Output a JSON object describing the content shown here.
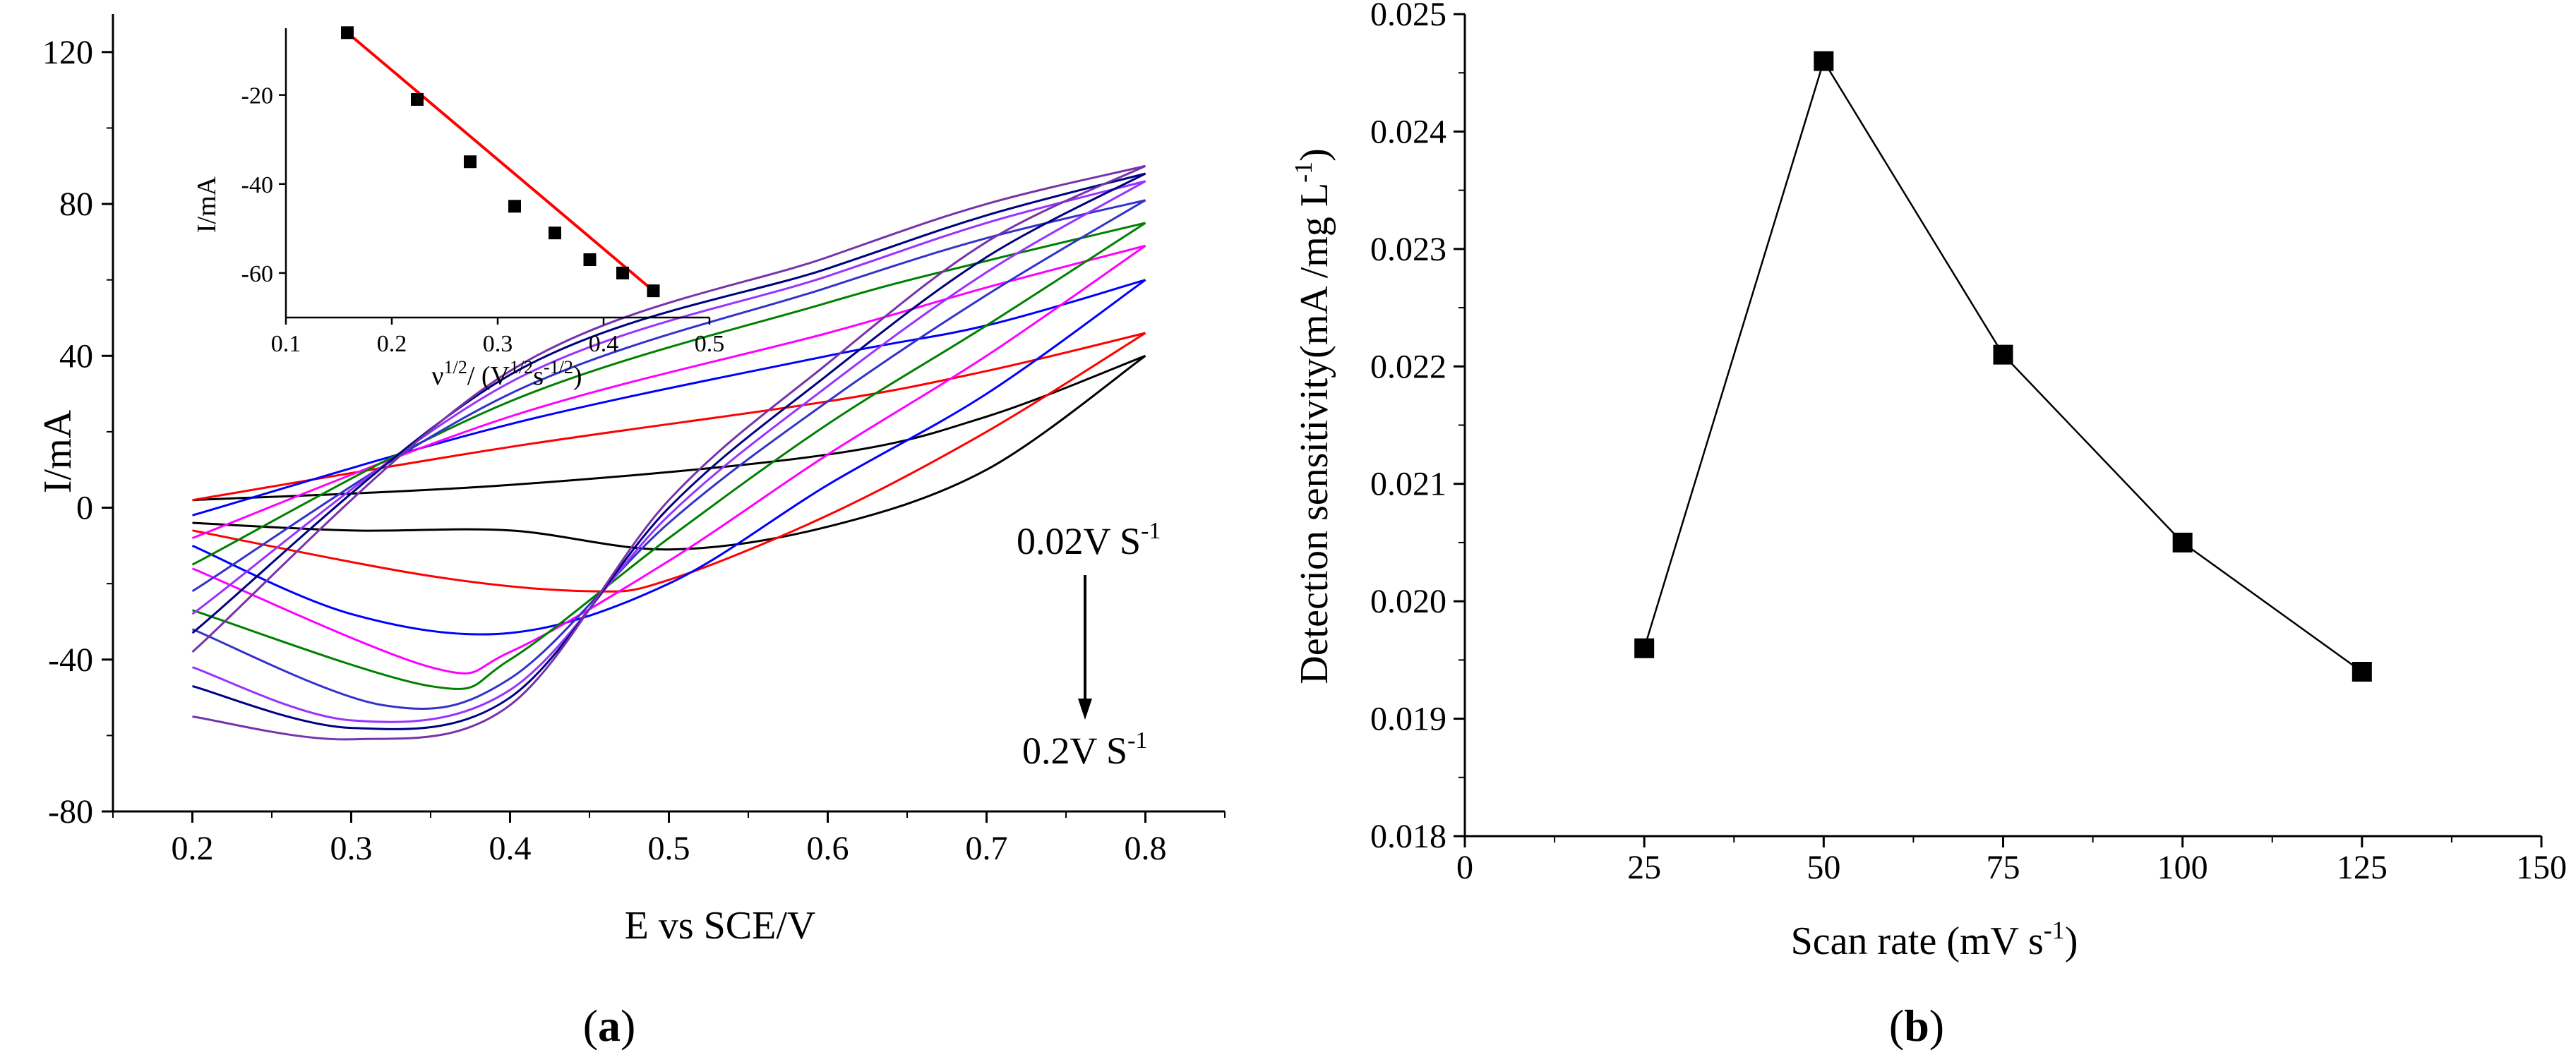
{
  "chart_data": [
    {
      "panel": "a",
      "type": "line",
      "xlabel": "E vs SCE/V",
      "ylabel": "I/mA",
      "xlim": [
        0.15,
        0.85
      ],
      "ylim": [
        -80,
        130
      ],
      "x_ticks": [
        "0.2",
        "0.3",
        "0.4",
        "0.5",
        "0.6",
        "0.7",
        "0.8"
      ],
      "y_ticks": [
        "-80",
        "-40",
        "0",
        "40",
        "80",
        "120"
      ],
      "annotations": {
        "start": {
          "text": "0.02V S",
          "sup": "-1"
        },
        "end": {
          "text": "0.2V S",
          "sup": "-1"
        }
      },
      "series": [
        {
          "color": "#000000",
          "x_range": [
            0.2,
            0.8
          ],
          "anodic": [
            [
              0.2,
              2
            ],
            [
              0.4,
              6
            ],
            [
              0.6,
              14
            ],
            [
              0.7,
              24
            ],
            [
              0.8,
              40
            ]
          ],
          "cathodic": [
            [
              0.8,
              40
            ],
            [
              0.7,
              10
            ],
            [
              0.6,
              -5
            ],
            [
              0.5,
              -11
            ],
            [
              0.4,
              -6
            ],
            [
              0.3,
              -6
            ],
            [
              0.2,
              -4
            ]
          ]
        },
        {
          "color": "#ff0000",
          "x_range": [
            0.2,
            0.8
          ],
          "anodic": [
            [
              0.2,
              2
            ],
            [
              0.4,
              16
            ],
            [
              0.6,
              28
            ],
            [
              0.7,
              36
            ],
            [
              0.8,
              46
            ]
          ],
          "cathodic": [
            [
              0.8,
              46
            ],
            [
              0.7,
              20
            ],
            [
              0.6,
              -2
            ],
            [
              0.5,
              -19
            ],
            [
              0.45,
              -22
            ],
            [
              0.35,
              -18
            ],
            [
              0.2,
              -6
            ]
          ]
        },
        {
          "color": "#0000ff",
          "x_range": [
            0.2,
            0.8
          ],
          "anodic": [
            [
              0.2,
              -2
            ],
            [
              0.4,
              22
            ],
            [
              0.6,
              40
            ],
            [
              0.7,
              48
            ],
            [
              0.8,
              60
            ]
          ],
          "cathodic": [
            [
              0.8,
              60
            ],
            [
              0.7,
              30
            ],
            [
              0.6,
              6
            ],
            [
              0.5,
              -20
            ],
            [
              0.4,
              -33
            ],
            [
              0.3,
              -28
            ],
            [
              0.2,
              -10
            ]
          ]
        },
        {
          "color": "#ff00ff",
          "x_range": [
            0.2,
            0.8
          ],
          "anodic": [
            [
              0.2,
              -8
            ],
            [
              0.4,
              24
            ],
            [
              0.6,
              46
            ],
            [
              0.7,
              58
            ],
            [
              0.8,
              69
            ]
          ],
          "cathodic": [
            [
              0.8,
              69
            ],
            [
              0.7,
              40
            ],
            [
              0.6,
              14
            ],
            [
              0.5,
              -14
            ],
            [
              0.4,
              -38
            ],
            [
              0.35,
              -42
            ],
            [
              0.2,
              -16
            ]
          ]
        },
        {
          "color": "#008000",
          "x_range": [
            0.2,
            0.8
          ],
          "anodic": [
            [
              0.2,
              -15
            ],
            [
              0.4,
              28
            ],
            [
              0.6,
              54
            ],
            [
              0.7,
              65
            ],
            [
              0.8,
              75
            ]
          ],
          "cathodic": [
            [
              0.8,
              75
            ],
            [
              0.7,
              48
            ],
            [
              0.6,
              22
            ],
            [
              0.5,
              -8
            ],
            [
              0.4,
              -40
            ],
            [
              0.35,
              -47
            ],
            [
              0.2,
              -27
            ]
          ]
        },
        {
          "color": "#3333cc",
          "x_range": [
            0.2,
            0.8
          ],
          "anodic": [
            [
              0.2,
              -22
            ],
            [
              0.4,
              30
            ],
            [
              0.6,
              58
            ],
            [
              0.7,
              71
            ],
            [
              0.8,
              81
            ]
          ],
          "cathodic": [
            [
              0.8,
              81
            ],
            [
              0.7,
              56
            ],
            [
              0.6,
              28
            ],
            [
              0.5,
              -4
            ],
            [
              0.4,
              -45
            ],
            [
              0.32,
              -52
            ],
            [
              0.2,
              -32
            ]
          ]
        },
        {
          "color": "#9933ff",
          "x_range": [
            0.2,
            0.8
          ],
          "anodic": [
            [
              0.2,
              -28
            ],
            [
              0.4,
              33
            ],
            [
              0.6,
              61
            ],
            [
              0.7,
              75
            ],
            [
              0.8,
              86
            ]
          ],
          "cathodic": [
            [
              0.8,
              86
            ],
            [
              0.7,
              62
            ],
            [
              0.6,
              32
            ],
            [
              0.5,
              -2
            ],
            [
              0.4,
              -48
            ],
            [
              0.3,
              -56
            ],
            [
              0.2,
              -42
            ]
          ]
        },
        {
          "color": "#000080",
          "x_range": [
            0.2,
            0.8
          ],
          "anodic": [
            [
              0.2,
              -33
            ],
            [
              0.4,
              35
            ],
            [
              0.6,
              63
            ],
            [
              0.7,
              77
            ],
            [
              0.8,
              88
            ]
          ],
          "cathodic": [
            [
              0.8,
              88
            ],
            [
              0.7,
              66
            ],
            [
              0.6,
              35
            ],
            [
              0.5,
              0
            ],
            [
              0.4,
              -50
            ],
            [
              0.3,
              -58
            ],
            [
              0.2,
              -47
            ]
          ]
        },
        {
          "color": "#7733aa",
          "x_range": [
            0.2,
            0.8
          ],
          "anodic": [
            [
              0.2,
              -38
            ],
            [
              0.4,
              36
            ],
            [
              0.6,
              66
            ],
            [
              0.7,
              80
            ],
            [
              0.8,
              90
            ]
          ],
          "cathodic": [
            [
              0.8,
              90
            ],
            [
              0.7,
              70
            ],
            [
              0.6,
              38
            ],
            [
              0.5,
              2
            ],
            [
              0.4,
              -52
            ],
            [
              0.3,
              -61
            ],
            [
              0.2,
              -55
            ]
          ]
        }
      ],
      "inset": {
        "type": "scatter",
        "xlabel": "ν",
        "xlabel_sup": "1/2",
        "xlabel_rest": "/ (V",
        "xlabel_sup2": "1/2",
        "xlabel_mid": "s",
        "xlabel_sup3": "-1/2",
        "xlabel_end": ")",
        "ylabel": "I/mA",
        "xlim": [
          0.1,
          0.5
        ],
        "ylim": [
          -70,
          -5
        ],
        "x_ticks": [
          "0.1",
          "0.2",
          "0.3",
          "0.4",
          "0.5"
        ],
        "y_ticks": [
          "-20",
          "-40",
          "-60"
        ],
        "x": [
          0.158,
          0.224,
          0.274,
          0.316,
          0.354,
          0.387,
          0.418,
          0.447
        ],
        "y": [
          -6,
          -21,
          -35,
          -45,
          -51,
          -57,
          -60,
          -64
        ],
        "fit_line": {
          "color": "#ff0000",
          "x": [
            0.158,
            0.447
          ],
          "y": [
            -6,
            -64
          ]
        }
      }
    },
    {
      "panel": "b",
      "type": "line",
      "xlabel": "Scan rate (mV s",
      "xlabel_sup": "-1",
      "xlabel_end": ")",
      "ylabel": "Detection sensitivity(mA /mg L",
      "ylabel_sup": "-1",
      "ylabel_end": ")",
      "xlim": [
        0,
        150
      ],
      "ylim": [
        0.018,
        0.025
      ],
      "x_ticks": [
        "0",
        "25",
        "50",
        "75",
        "100",
        "125",
        "150"
      ],
      "y_ticks": [
        "0.018",
        "0.019",
        "0.020",
        "0.021",
        "0.022",
        "0.023",
        "0.024",
        "0.025"
      ],
      "x": [
        25,
        50,
        75,
        100,
        125
      ],
      "y": [
        0.0196,
        0.0246,
        0.0221,
        0.0205,
        0.0194
      ]
    }
  ],
  "labels": {
    "a_open": "(",
    "a_letter": "a",
    "a_close": ")",
    "b_open": "(",
    "b_letter": "b",
    "b_close": ")"
  }
}
